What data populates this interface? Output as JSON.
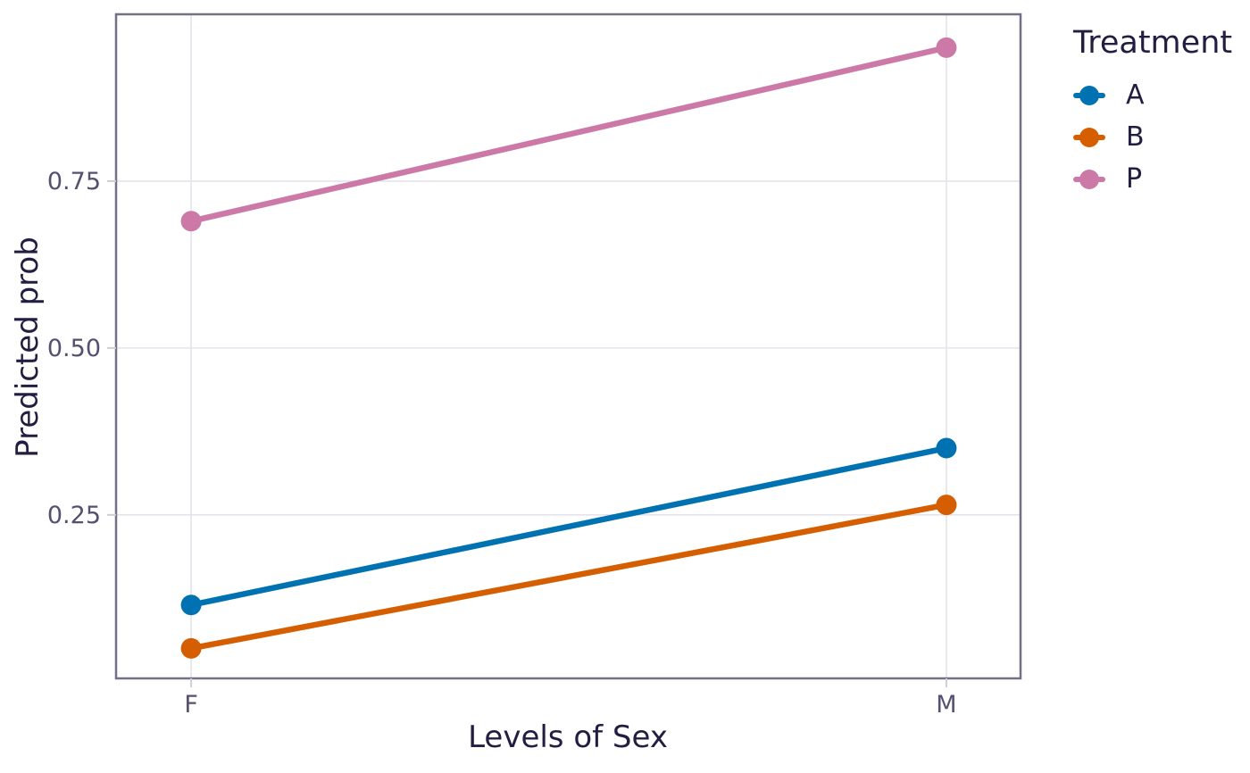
{
  "chart_data": {
    "type": "line",
    "title": "",
    "xlabel": "Levels of Sex",
    "ylabel": "Predicted prob",
    "categories": [
      "F",
      "M"
    ],
    "series": [
      {
        "name": "A",
        "color": "#0072B2",
        "values": [
          0.115,
          0.35
        ]
      },
      {
        "name": "B",
        "color": "#D55E00",
        "values": [
          0.05,
          0.265
        ]
      },
      {
        "name": "P",
        "color": "#CC79A7",
        "values": [
          0.69,
          0.95
        ]
      }
    ],
    "yticks": [
      0.25,
      0.5,
      0.75
    ],
    "ytick_labels": [
      "0.25",
      "0.50",
      "0.75"
    ],
    "xtick_labels": [
      "F",
      "M"
    ],
    "ylim": [
      0.005,
      1.0
    ],
    "grid": "major-only",
    "legend": {
      "title": "Treatment",
      "position": "right",
      "entries": [
        "A",
        "B",
        "P"
      ]
    },
    "theme": {
      "panel_border": "#746e86",
      "gridline": "#e5e3eb",
      "tick_mark": "#cfcdd8",
      "tick_label_color": "#564f70",
      "title_color": "#241d42",
      "background": "#ffffff"
    }
  }
}
